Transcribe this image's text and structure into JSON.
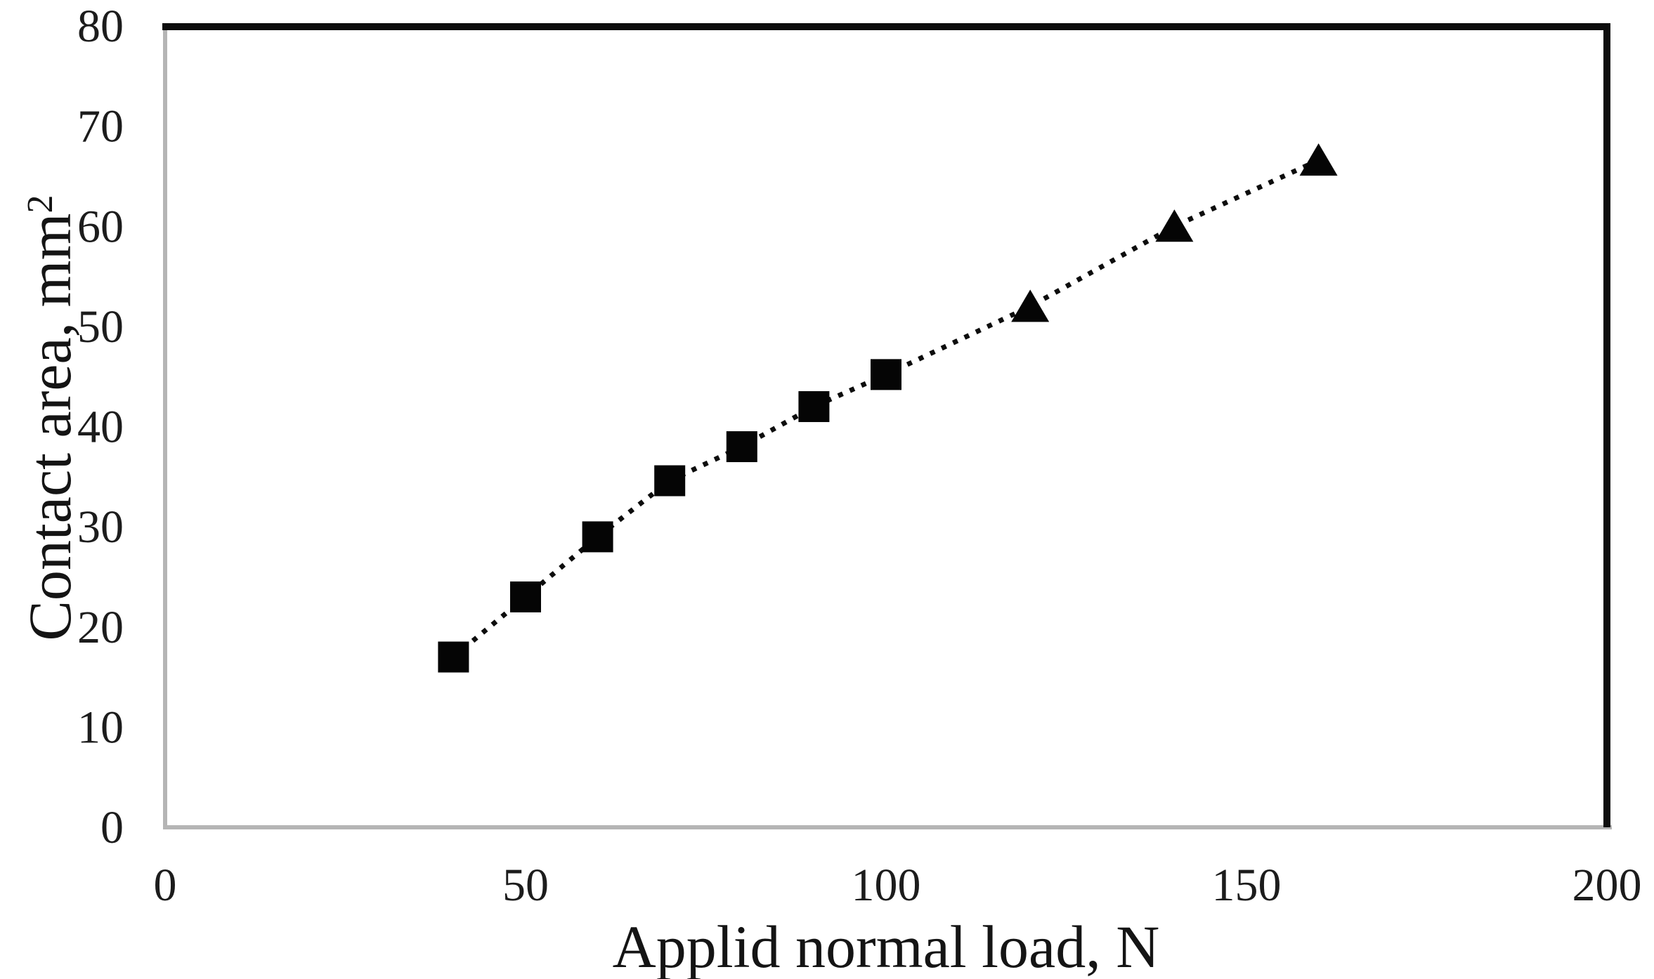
{
  "chart_data": {
    "type": "scatter",
    "title": "",
    "xlabel": "Applid normal load, N",
    "ylabel": "Contact area, mm",
    "ylabel_superscript": "2",
    "xlim": [
      0,
      200
    ],
    "ylim": [
      0,
      80
    ],
    "x_ticks": [
      0,
      50,
      100,
      150,
      200
    ],
    "y_ticks": [
      0,
      10,
      20,
      30,
      40,
      50,
      60,
      70,
      80
    ],
    "grid": false,
    "legend": "none",
    "line_style": "dotted",
    "series": [
      {
        "name": "square-marker-series",
        "marker": "square",
        "points": [
          [
            40,
            17
          ],
          [
            50,
            23
          ],
          [
            60,
            29
          ],
          [
            70,
            34.6
          ],
          [
            80,
            38
          ],
          [
            90,
            42
          ],
          [
            100,
            45.2
          ]
        ]
      },
      {
        "name": "triangle-marker-series",
        "marker": "triangle",
        "points": [
          [
            120,
            52
          ],
          [
            140,
            60
          ],
          [
            160,
            66.6
          ]
        ]
      }
    ],
    "colors": {
      "marker": "#050505",
      "line": "#0d0d0d",
      "border_dark": "#0d0d0d",
      "axis_gray": "#b5b5b5",
      "text": "#1c1c1c",
      "background": "#ffffff"
    }
  }
}
